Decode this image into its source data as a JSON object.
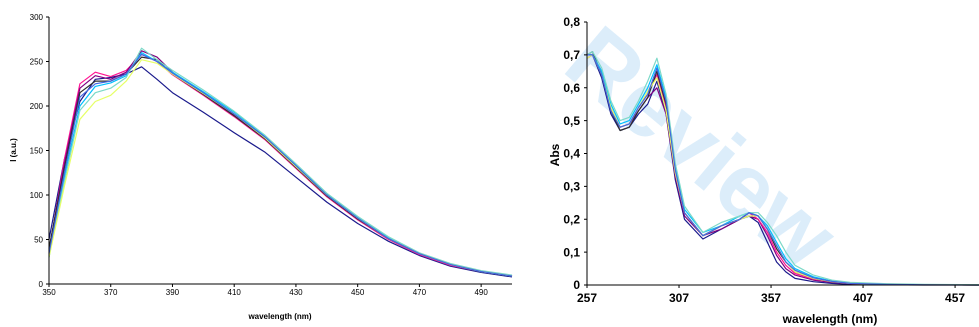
{
  "watermark": {
    "text": "Review",
    "color": "#e3f1fb"
  },
  "chart_data": [
    {
      "type": "line",
      "title": "",
      "xlabel": "wavelength (nm)",
      "ylabel": "I (a.u.)",
      "xlim": [
        350,
        500
      ],
      "ylim": [
        0,
        300
      ],
      "xticks": [
        "350",
        "370",
        "390",
        "410",
        "430",
        "450",
        "470",
        "490"
      ],
      "yticks": [
        "0",
        "50",
        "100",
        "150",
        "200",
        "250",
        "300"
      ],
      "grid": false,
      "legend": "none",
      "series": [
        {
          "color": "#1a1a8c",
          "x": [
            350,
            355,
            360,
            365,
            370,
            375,
            380,
            385,
            390,
            400,
            410,
            420,
            430,
            440,
            450,
            460,
            470,
            480,
            490,
            500
          ],
          "y": [
            50,
            140,
            205,
            230,
            232,
            236,
            244,
            230,
            215,
            193,
            170,
            148,
            120,
            92,
            68,
            48,
            32,
            20,
            13,
            8
          ]
        },
        {
          "color": "#ff1493",
          "x": [
            350,
            355,
            360,
            365,
            370,
            375,
            380,
            385,
            390,
            400,
            410,
            420,
            430,
            440,
            450,
            460,
            470,
            480,
            490,
            500
          ],
          "y": [
            35,
            140,
            225,
            238,
            233,
            240,
            258,
            250,
            235,
            212,
            188,
            162,
            130,
            98,
            72,
            50,
            33,
            21,
            14,
            9
          ]
        },
        {
          "color": "#800080",
          "x": [
            350,
            355,
            360,
            365,
            370,
            375,
            380,
            385,
            390,
            400,
            410,
            420,
            430,
            440,
            450,
            460,
            470,
            480,
            490,
            500
          ],
          "y": [
            38,
            135,
            220,
            234,
            230,
            238,
            262,
            255,
            238,
            214,
            190,
            164,
            132,
            100,
            74,
            51,
            34,
            22,
            14,
            9
          ]
        },
        {
          "color": "#2f2f2f",
          "x": [
            350,
            355,
            360,
            365,
            370,
            375,
            380,
            385,
            390,
            400,
            410,
            420,
            430,
            440,
            450,
            460,
            470,
            480,
            490,
            500
          ],
          "y": [
            40,
            130,
            215,
            228,
            228,
            236,
            255,
            252,
            236,
            213,
            189,
            163,
            131,
            99,
            73,
            51,
            34,
            22,
            14,
            9
          ]
        },
        {
          "color": "#00bfff",
          "x": [
            350,
            355,
            360,
            365,
            370,
            375,
            380,
            385,
            390,
            400,
            410,
            420,
            430,
            440,
            450,
            460,
            470,
            480,
            490,
            500
          ],
          "y": [
            30,
            120,
            200,
            222,
            226,
            234,
            260,
            250,
            238,
            216,
            193,
            166,
            134,
            101,
            75,
            52,
            34,
            22,
            14,
            9
          ]
        },
        {
          "color": "#7cd9c8",
          "x": [
            350,
            355,
            360,
            365,
            370,
            375,
            380,
            385,
            390,
            400,
            410,
            420,
            430,
            440,
            450,
            460,
            470,
            480,
            490,
            500
          ],
          "y": [
            32,
            115,
            195,
            215,
            220,
            232,
            265,
            252,
            240,
            218,
            194,
            167,
            135,
            102,
            76,
            53,
            35,
            23,
            15,
            10
          ]
        },
        {
          "color": "#e6ff66",
          "x": [
            350,
            355,
            360,
            365,
            370,
            375,
            380,
            385,
            390,
            400,
            410,
            420,
            430,
            440,
            450,
            460,
            470,
            480,
            490,
            500
          ],
          "y": [
            30,
            110,
            185,
            205,
            212,
            228,
            252,
            248,
            236,
            214,
            191,
            164,
            132,
            100,
            74,
            51,
            34,
            22,
            14,
            9
          ]
        },
        {
          "color": "#4169e1",
          "x": [
            350,
            355,
            360,
            365,
            370,
            375,
            380,
            385,
            390,
            400,
            410,
            420,
            430,
            440,
            450,
            460,
            470,
            480,
            490,
            500
          ],
          "y": [
            34,
            125,
            210,
            225,
            228,
            236,
            258,
            250,
            237,
            215,
            191,
            165,
            133,
            100,
            74,
            51,
            34,
            22,
            14,
            9
          ]
        }
      ]
    },
    {
      "type": "line",
      "title": "",
      "xlabel": "wavelength (nm)",
      "ylabel": "Abs",
      "xlim": [
        257,
        470
      ],
      "ylim": [
        0,
        0.8
      ],
      "xticks": [
        "257",
        "307",
        "357",
        "407",
        "457"
      ],
      "yticks": [
        "0",
        "0,1",
        "0,2",
        "0,3",
        "0,4",
        "0,5",
        "0,6",
        "0,7",
        "0,8"
      ],
      "grid": false,
      "legend": "none",
      "series": [
        {
          "color": "#1a1a8c",
          "x": [
            257,
            260,
            265,
            270,
            275,
            280,
            285,
            290,
            295,
            300,
            305,
            310,
            320,
            330,
            340,
            345,
            350,
            355,
            360,
            365,
            370,
            380,
            390,
            400,
            420,
            440,
            470
          ],
          "y": [
            0.69,
            0.7,
            0.63,
            0.52,
            0.47,
            0.48,
            0.52,
            0.55,
            0.62,
            0.52,
            0.32,
            0.2,
            0.14,
            0.17,
            0.2,
            0.21,
            0.19,
            0.13,
            0.07,
            0.04,
            0.02,
            0.01,
            0.005,
            0.002,
            0.001,
            0.0,
            0.0
          ]
        },
        {
          "color": "#800080",
          "x": [
            257,
            260,
            265,
            270,
            275,
            280,
            285,
            290,
            295,
            300,
            305,
            310,
            320,
            330,
            340,
            345,
            350,
            355,
            360,
            365,
            370,
            380,
            390,
            400,
            420,
            440,
            470
          ],
          "y": [
            0.7,
            0.7,
            0.64,
            0.53,
            0.48,
            0.49,
            0.53,
            0.57,
            0.6,
            0.52,
            0.33,
            0.21,
            0.15,
            0.17,
            0.2,
            0.21,
            0.2,
            0.15,
            0.09,
            0.05,
            0.03,
            0.015,
            0.008,
            0.004,
            0.002,
            0.001,
            0.0
          ]
        },
        {
          "color": "#ff1493",
          "x": [
            257,
            260,
            265,
            270,
            275,
            280,
            285,
            290,
            295,
            300,
            305,
            310,
            320,
            330,
            340,
            345,
            350,
            355,
            360,
            365,
            370,
            380,
            390,
            400,
            420,
            440,
            470
          ],
          "y": [
            0.69,
            0.7,
            0.65,
            0.54,
            0.48,
            0.49,
            0.54,
            0.58,
            0.64,
            0.54,
            0.34,
            0.22,
            0.15,
            0.18,
            0.2,
            0.22,
            0.2,
            0.16,
            0.1,
            0.06,
            0.035,
            0.018,
            0.01,
            0.005,
            0.002,
            0.001,
            0.0
          ]
        },
        {
          "color": "#2f2f2f",
          "x": [
            257,
            260,
            265,
            270,
            275,
            280,
            285,
            290,
            295,
            300,
            305,
            310,
            320,
            330,
            340,
            345,
            350,
            355,
            360,
            365,
            370,
            380,
            390,
            400,
            420,
            440,
            470
          ],
          "y": [
            0.7,
            0.71,
            0.64,
            0.53,
            0.47,
            0.48,
            0.53,
            0.57,
            0.65,
            0.55,
            0.35,
            0.22,
            0.15,
            0.18,
            0.2,
            0.22,
            0.21,
            0.17,
            0.11,
            0.07,
            0.04,
            0.02,
            0.01,
            0.005,
            0.002,
            0.001,
            0.0
          ]
        },
        {
          "color": "#00bfff",
          "x": [
            257,
            260,
            265,
            270,
            275,
            280,
            285,
            290,
            295,
            300,
            305,
            310,
            320,
            330,
            340,
            345,
            350,
            355,
            360,
            365,
            370,
            380,
            390,
            400,
            420,
            440,
            470
          ],
          "y": [
            0.7,
            0.7,
            0.65,
            0.55,
            0.49,
            0.5,
            0.55,
            0.6,
            0.67,
            0.57,
            0.36,
            0.23,
            0.16,
            0.18,
            0.21,
            0.22,
            0.21,
            0.18,
            0.13,
            0.08,
            0.05,
            0.025,
            0.012,
            0.006,
            0.003,
            0.001,
            0.0
          ]
        },
        {
          "color": "#7cd9c8",
          "x": [
            257,
            260,
            265,
            270,
            275,
            280,
            285,
            290,
            295,
            300,
            305,
            310,
            320,
            330,
            340,
            345,
            350,
            355,
            360,
            365,
            370,
            380,
            390,
            400,
            420,
            440,
            470
          ],
          "y": [
            0.7,
            0.71,
            0.66,
            0.56,
            0.5,
            0.51,
            0.56,
            0.62,
            0.69,
            0.58,
            0.37,
            0.24,
            0.16,
            0.19,
            0.21,
            0.22,
            0.22,
            0.19,
            0.15,
            0.1,
            0.06,
            0.03,
            0.015,
            0.008,
            0.004,
            0.002,
            0.001
          ]
        },
        {
          "color": "#e6ff66",
          "x": [
            257,
            260,
            265,
            270,
            275,
            280,
            285,
            290,
            295,
            300,
            305,
            310,
            320,
            330,
            340,
            345,
            350,
            355,
            360,
            365,
            370,
            380,
            390,
            400,
            420,
            440,
            470
          ],
          "y": [
            0.69,
            0.7,
            0.64,
            0.54,
            0.48,
            0.49,
            0.54,
            0.59,
            0.63,
            0.53,
            0.34,
            0.22,
            0.15,
            0.18,
            0.2,
            0.21,
            0.21,
            0.17,
            0.12,
            0.07,
            0.04,
            0.02,
            0.01,
            0.005,
            0.002,
            0.001,
            0.0
          ]
        },
        {
          "color": "#4169e1",
          "x": [
            257,
            260,
            265,
            270,
            275,
            280,
            285,
            290,
            295,
            300,
            305,
            310,
            320,
            330,
            340,
            345,
            350,
            355,
            360,
            365,
            370,
            380,
            390,
            400,
            420,
            440,
            470
          ],
          "y": [
            0.7,
            0.7,
            0.64,
            0.53,
            0.48,
            0.49,
            0.54,
            0.58,
            0.66,
            0.56,
            0.35,
            0.22,
            0.15,
            0.18,
            0.2,
            0.22,
            0.21,
            0.17,
            0.12,
            0.07,
            0.045,
            0.022,
            0.011,
            0.005,
            0.002,
            0.001,
            0.0
          ]
        }
      ]
    }
  ]
}
